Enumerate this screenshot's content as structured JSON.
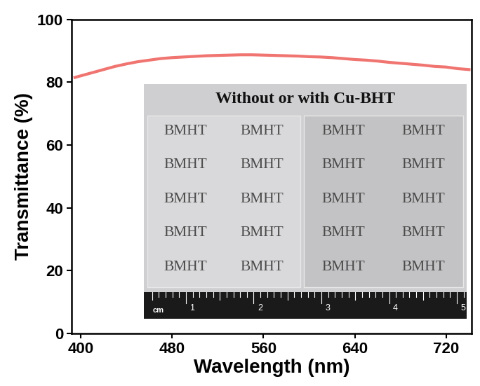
{
  "chart_data": {
    "type": "line",
    "x_label": "Wavelength (nm)",
    "y_label": "Transmittance (%)",
    "x": [
      395,
      400,
      410,
      420,
      430,
      440,
      450,
      460,
      470,
      480,
      490,
      500,
      510,
      520,
      530,
      540,
      550,
      560,
      570,
      580,
      590,
      600,
      610,
      620,
      630,
      640,
      650,
      660,
      670,
      680,
      690,
      700,
      710,
      720,
      730,
      740
    ],
    "values": [
      81.5,
      82.0,
      83.0,
      84.0,
      85.0,
      85.8,
      86.5,
      87.0,
      87.5,
      87.8,
      88.0,
      88.2,
      88.4,
      88.5,
      88.6,
      88.7,
      88.7,
      88.6,
      88.5,
      88.4,
      88.3,
      88.1,
      88.0,
      87.8,
      87.5,
      87.2,
      87.0,
      86.7,
      86.3,
      86.0,
      85.7,
      85.4,
      85.0,
      84.8,
      84.3,
      84.0
    ],
    "color": "#f07470",
    "xlim": [
      392,
      742
    ],
    "xticks": [
      400,
      480,
      560,
      640,
      720
    ],
    "ylim": [
      0,
      100
    ],
    "yticks": [
      0,
      20,
      40,
      60,
      80,
      100
    ],
    "grid": false
  },
  "inset": {
    "title": "Without or with Cu-BHT",
    "panels": [
      [
        [
          "BMHT",
          "BMHT"
        ],
        [
          "BMHT",
          "BMHT"
        ],
        [
          "BMHT",
          "BMHT"
        ],
        [
          "BMHT",
          "BMHT"
        ],
        [
          "BMHT",
          "BMHT"
        ]
      ],
      [
        [
          "BMHT",
          "BMHT"
        ],
        [
          "BMHT",
          "BMHT"
        ],
        [
          "BMHT",
          "BMHT"
        ],
        [
          "BMHT",
          "BMHT"
        ],
        [
          "BMHT",
          "BMHT"
        ]
      ]
    ],
    "ruler": {
      "unit": "cm",
      "labels": [
        1,
        2,
        3,
        4,
        5
      ]
    }
  }
}
